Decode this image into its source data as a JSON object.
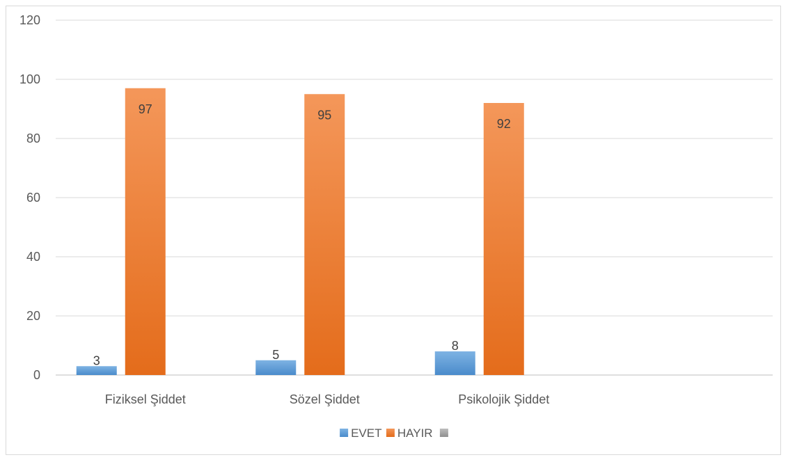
{
  "chart_data": {
    "type": "bar",
    "categories": [
      "Fiziksel Şiddet",
      "Sözel Şiddet",
      "Psikolojik Şiddet",
      ""
    ],
    "series": [
      {
        "name": "EVET",
        "values": [
          3,
          5,
          8,
          null
        ],
        "color": "#5b9bd5"
      },
      {
        "name": "HAYIR",
        "values": [
          97,
          95,
          92,
          null
        ],
        "color": "#ed7d31"
      },
      {
        "name": "",
        "values": [
          null,
          null,
          null,
          null
        ],
        "color": "#a5a5a5"
      }
    ],
    "yticks": [
      0,
      20,
      40,
      60,
      80,
      100,
      120
    ],
    "ylim": [
      0,
      120
    ],
    "grid": true,
    "legend": "bottom",
    "data_labels": true
  }
}
